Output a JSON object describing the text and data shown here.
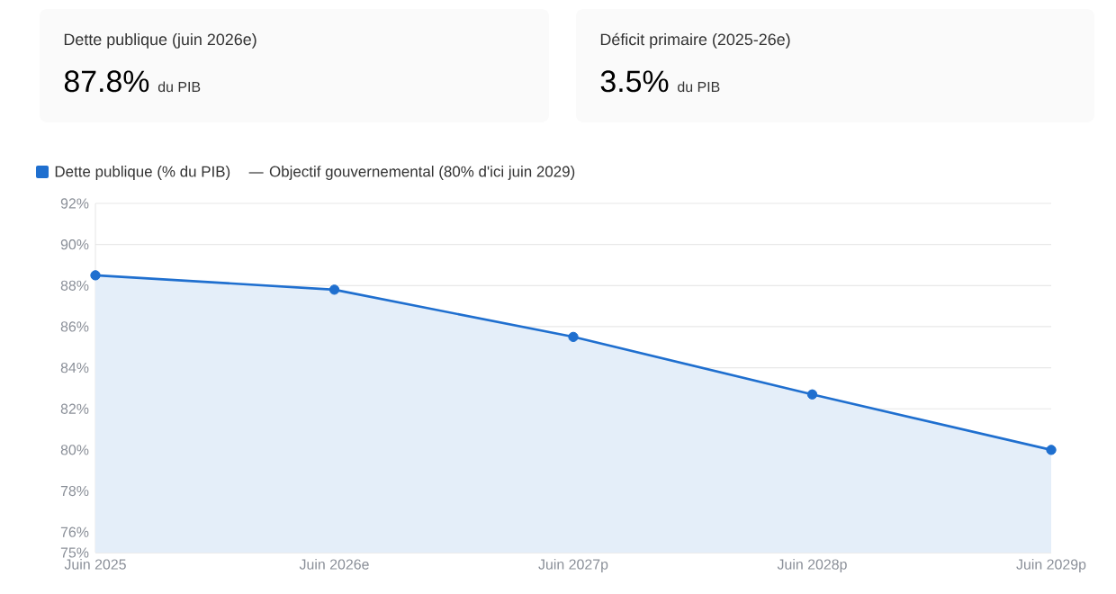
{
  "chart_data": {
    "type": "area",
    "categories": [
      "Juin 2025",
      "Juin 2026e",
      "Juin 2027p",
      "Juin 2028p",
      "Juin 2029p"
    ],
    "series": [
      {
        "name": "Dette publique (% du PIB)",
        "color": "#1f6fcf",
        "values": [
          88.5,
          87.8,
          85.5,
          82.7,
          80.0
        ]
      }
    ],
    "ylim": [
      75,
      92
    ],
    "yticks": [
      {
        "value": 75,
        "label": "75%"
      },
      {
        "value": 76,
        "label": "76%"
      },
      {
        "value": 78,
        "label": "78%"
      },
      {
        "value": 80,
        "label": "80%"
      },
      {
        "value": 82,
        "label": "82%"
      },
      {
        "value": 84,
        "label": "84%"
      },
      {
        "value": 86,
        "label": "86%"
      },
      {
        "value": 88,
        "label": "88%"
      },
      {
        "value": 90,
        "label": "90%"
      },
      {
        "value": 92,
        "label": "92%"
      }
    ],
    "grid": "y",
    "legend": "top left",
    "marker": "circle",
    "annotations": [
      "Dette publique (juin 2026e)",
      "87.8%",
      "du PIB",
      "Déficit primaire (2025-26e)",
      "3.5%",
      "du PIB",
      "Objectif gouvernemental (80% d'ici juin 2029)"
    ]
  }
}
